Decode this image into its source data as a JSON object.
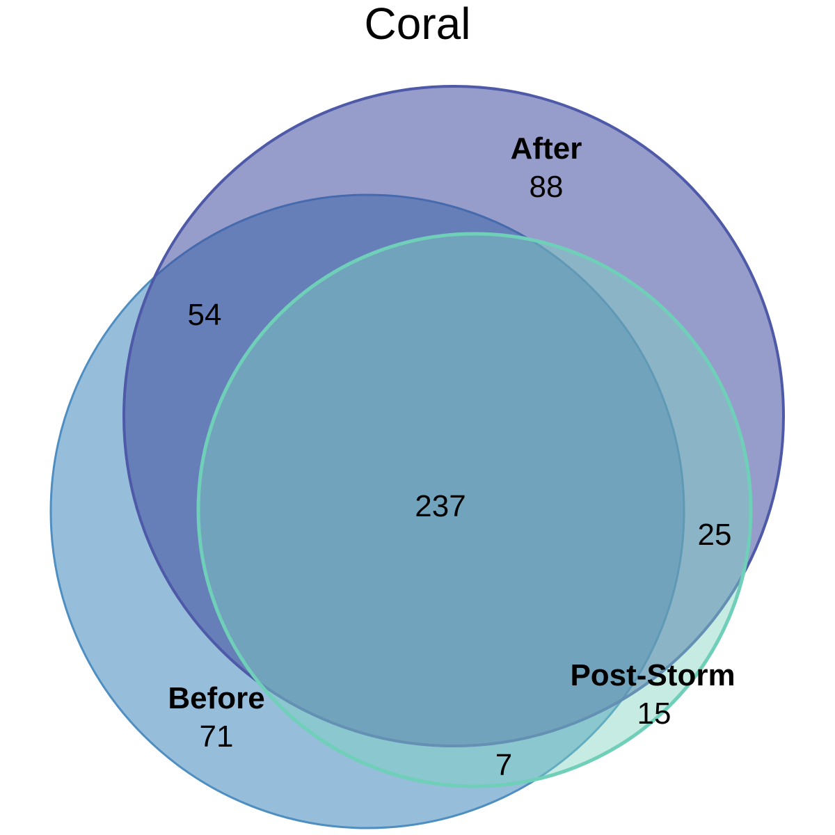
{
  "title": "Coral",
  "sets": [
    {
      "name": "Before",
      "count": "71",
      "fill": "#5e9ac6",
      "stroke": "#4f8ec0"
    },
    {
      "name": "After",
      "count": "88",
      "fill": "#3f4d9e",
      "stroke": "#4e5aa8"
    },
    {
      "name": "Post-Storm",
      "count": "15",
      "fill": "#7fd3c1",
      "stroke": "#6fcfb8"
    }
  ],
  "intersections": {
    "before_after": "54",
    "after_poststorm": "25",
    "before_poststorm": "7",
    "all_three": "237"
  }
}
